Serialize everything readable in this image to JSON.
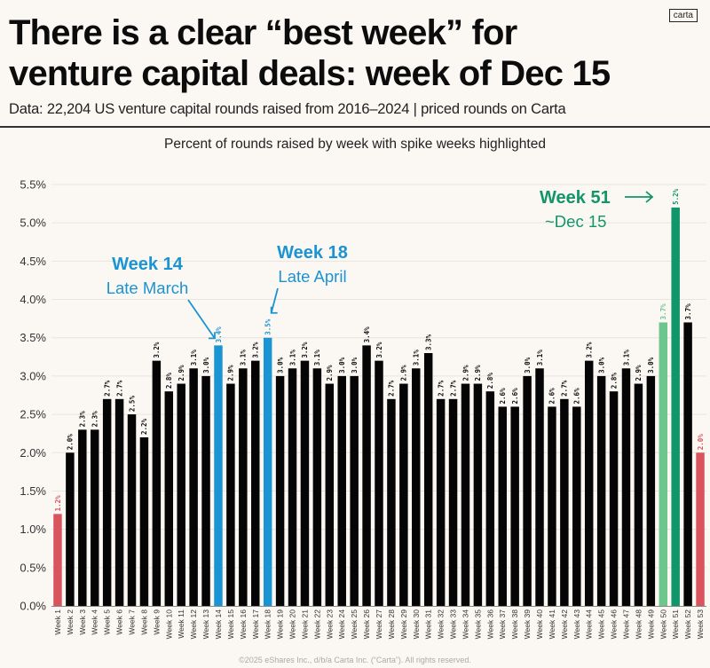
{
  "brand": {
    "logo_text": "carta"
  },
  "header": {
    "title_line1": "There is a clear “best week” for",
    "title_line2": "venture capital deals: week of Dec 15",
    "subtitle": "Data: 22,204 US venture capital rounds raised from 2016–2024 | priced rounds on Carta"
  },
  "footer": {
    "copyright": "©2025 eShares Inc., d/b/a Carta Inc. (“Carta”). All rights reserved."
  },
  "colors": {
    "default_bar": "#050505",
    "low_bar": "#d9545e",
    "spike_blue": "#1a94d2",
    "spike_green": "#11956b",
    "spike_light_green": "#6cc68e",
    "gridline": "#e9e4de",
    "background": "#fbf7f3"
  },
  "chart_data": {
    "type": "bar",
    "title": "Percent of rounds raised by week with spike weeks highlighted",
    "xlabel": "",
    "ylabel": "",
    "ylim": [
      0,
      5.5
    ],
    "yticks": [
      0.0,
      0.5,
      1.0,
      1.5,
      2.0,
      2.5,
      3.0,
      3.5,
      4.0,
      4.5,
      5.0,
      5.5
    ],
    "ytick_labels": [
      "0.0%",
      "0.5%",
      "1.0%",
      "1.5%",
      "2.0%",
      "2.5%",
      "3.0%",
      "3.5%",
      "4.0%",
      "4.5%",
      "5.0%",
      "5.5%"
    ],
    "grid": true,
    "categories": [
      "Week 1",
      "Week 2",
      "Week 3",
      "Week 4",
      "Week 5",
      "Week 6",
      "Week 7",
      "Week 8",
      "Week 9",
      "Week 10",
      "Week 11",
      "Week 12",
      "Week 13",
      "Week 14",
      "Week 15",
      "Week 16",
      "Week 17",
      "Week 18",
      "Week 19",
      "Week 20",
      "Week 21",
      "Week 22",
      "Week 23",
      "Week 24",
      "Week 25",
      "Week 26",
      "Week 27",
      "Week 28",
      "Week 29",
      "Week 30",
      "Week 31",
      "Week 32",
      "Week 33",
      "Week 34",
      "Week 35",
      "Week 36",
      "Week 37",
      "Week 38",
      "Week 39",
      "Week 40",
      "Week 41",
      "Week 42",
      "Week 43",
      "Week 44",
      "Week 45",
      "Week 46",
      "Week 47",
      "Week 48",
      "Week 49",
      "Week 50",
      "Week 51",
      "Week 52",
      "Week 53"
    ],
    "values": [
      1.2,
      2.0,
      2.3,
      2.3,
      2.7,
      2.7,
      2.5,
      2.2,
      3.2,
      2.8,
      2.9,
      3.1,
      3.0,
      3.4,
      2.9,
      3.1,
      3.2,
      3.5,
      3.0,
      3.1,
      3.2,
      3.1,
      2.9,
      3.0,
      3.0,
      3.4,
      3.2,
      2.7,
      2.9,
      3.1,
      3.3,
      2.7,
      2.7,
      2.9,
      2.9,
      2.8,
      2.6,
      2.6,
      3.0,
      3.1,
      2.6,
      2.7,
      2.6,
      3.2,
      3.0,
      2.8,
      3.1,
      2.9,
      3.0,
      3.7,
      5.2,
      3.7,
      2.0
    ],
    "data_labels": [
      "1.2%",
      "2.0%",
      "2.3%",
      "2.3%",
      "2.7%",
      "2.7%",
      "2.5%",
      "2.2%",
      "3.2%",
      "2.8%",
      "2.9%",
      "3.1%",
      "3.0%",
      "3.4%",
      "2.9%",
      "3.1%",
      "3.2%",
      "3.5%",
      "3.0%",
      "3.1%",
      "3.2%",
      "3.1%",
      "2.9%",
      "3.0%",
      "3.0%",
      "3.4%",
      "3.2%",
      "2.7%",
      "2.9%",
      "3.1%",
      "3.3%",
      "2.7%",
      "2.7%",
      "2.9%",
      "2.9%",
      "2.8%",
      "2.6%",
      "2.6%",
      "3.0%",
      "3.1%",
      "2.6%",
      "2.7%",
      "2.6%",
      "3.2%",
      "3.0%",
      "2.8%",
      "3.1%",
      "2.9%",
      "3.0%",
      "3.7%",
      "5.2%",
      "3.7%",
      "2.0%"
    ],
    "highlights": {
      "low": [
        "Week 1",
        "Week 53"
      ],
      "spike_blue": [
        "Week 14",
        "Week 18"
      ],
      "spike_green": [
        "Week 51"
      ],
      "spike_light_green": [
        "Week 50"
      ]
    },
    "annotations": [
      {
        "target": "Week 14",
        "bold": "Week 14",
        "text": "Late March",
        "color": "#1a94d2"
      },
      {
        "target": "Week 18",
        "bold": "Week 18",
        "text": "Late April",
        "color": "#1a94d2"
      },
      {
        "target": "Week 51",
        "bold": "Week 51",
        "text": "~Dec 15",
        "color": "#11956b"
      }
    ]
  }
}
